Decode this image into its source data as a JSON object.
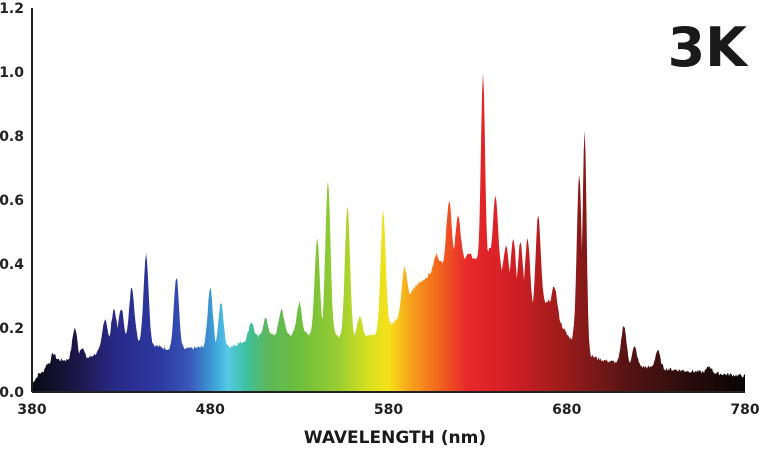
{
  "chart_data": {
    "type": "area",
    "badge": "3K",
    "xlabel": "WAVELENGTH (nm)",
    "ylabel": "",
    "xlim": [
      380,
      780
    ],
    "ylim": [
      0,
      1.2
    ],
    "x_ticks": [
      "380",
      "480",
      "580",
      "680",
      "780"
    ],
    "y_ticks": [
      "0.0",
      "0.2",
      "0.4",
      "0.6",
      "0.8",
      "1.0",
      "1.2"
    ],
    "grid": false,
    "fill": "spectral gradient",
    "baseline": [
      [
        380,
        0.03
      ],
      [
        395,
        0.1
      ],
      [
        410,
        0.1
      ],
      [
        430,
        0.17
      ],
      [
        445,
        0.15
      ],
      [
        460,
        0.13
      ],
      [
        475,
        0.14
      ],
      [
        490,
        0.14
      ],
      [
        505,
        0.17
      ],
      [
        520,
        0.18
      ],
      [
        540,
        0.18
      ],
      [
        560,
        0.17
      ],
      [
        575,
        0.18
      ],
      [
        585,
        0.23
      ],
      [
        595,
        0.33
      ],
      [
        610,
        0.4
      ],
      [
        625,
        0.42
      ],
      [
        640,
        0.4
      ],
      [
        650,
        0.3
      ],
      [
        660,
        0.25
      ],
      [
        670,
        0.28
      ],
      [
        680,
        0.18
      ],
      [
        690,
        0.12
      ],
      [
        700,
        0.1
      ],
      [
        720,
        0.08
      ],
      [
        740,
        0.07
      ],
      [
        760,
        0.06
      ],
      [
        780,
        0.05
      ]
    ],
    "peaks": [
      {
        "x": 385,
        "y": 0.06
      },
      {
        "x": 389,
        "y": 0.09
      },
      {
        "x": 392,
        "y": 0.12
      },
      {
        "x": 404,
        "y": 0.2
      },
      {
        "x": 408,
        "y": 0.14
      },
      {
        "x": 421,
        "y": 0.23
      },
      {
        "x": 426,
        "y": 0.26
      },
      {
        "x": 430,
        "y": 0.26
      },
      {
        "x": 436,
        "y": 0.33
      },
      {
        "x": 444,
        "y": 0.43
      },
      {
        "x": 461,
        "y": 0.36
      },
      {
        "x": 480,
        "y": 0.33
      },
      {
        "x": 486,
        "y": 0.28
      },
      {
        "x": 503,
        "y": 0.22
      },
      {
        "x": 511,
        "y": 0.23
      },
      {
        "x": 520,
        "y": 0.26
      },
      {
        "x": 530,
        "y": 0.28
      },
      {
        "x": 540,
        "y": 0.48
      },
      {
        "x": 546,
        "y": 0.66
      },
      {
        "x": 557,
        "y": 0.58
      },
      {
        "x": 564,
        "y": 0.24
      },
      {
        "x": 577,
        "y": 0.57
      },
      {
        "x": 589,
        "y": 0.39
      },
      {
        "x": 600,
        "y": 0.32
      },
      {
        "x": 607,
        "y": 0.43
      },
      {
        "x": 614,
        "y": 0.6
      },
      {
        "x": 619,
        "y": 0.55
      },
      {
        "x": 625,
        "y": 0.43
      },
      {
        "x": 633,
        "y": 1.0
      },
      {
        "x": 637,
        "y": 0.45
      },
      {
        "x": 640,
        "y": 0.61
      },
      {
        "x": 646,
        "y": 0.46
      },
      {
        "x": 650,
        "y": 0.48
      },
      {
        "x": 654,
        "y": 0.47
      },
      {
        "x": 658,
        "y": 0.48
      },
      {
        "x": 664,
        "y": 0.55
      },
      {
        "x": 673,
        "y": 0.33
      },
      {
        "x": 687,
        "y": 0.68
      },
      {
        "x": 690,
        "y": 0.82
      },
      {
        "x": 712,
        "y": 0.21
      },
      {
        "x": 718,
        "y": 0.14
      },
      {
        "x": 731,
        "y": 0.13
      },
      {
        "x": 760,
        "y": 0.08
      }
    ]
  }
}
